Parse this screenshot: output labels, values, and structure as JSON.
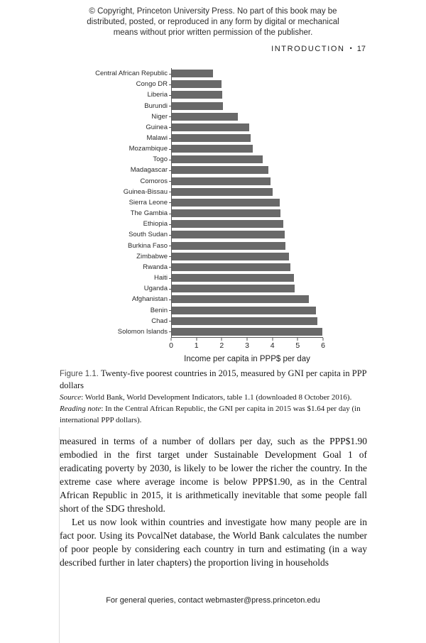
{
  "page": {
    "copyright_lines": [
      "© Copyright, Princeton University Press. No part of this book may be",
      "distributed, posted, or reproduced in any form by digital or mechanical",
      "means without prior written permission of the publisher."
    ],
    "running_head": {
      "section": "INTRODUCTION",
      "separator": "•",
      "page_number": "17"
    },
    "footer": "For general queries, contact webmaster@press.princeton.edu"
  },
  "chart_data": {
    "type": "bar",
    "orientation": "horizontal",
    "title": "",
    "xlabel": "Income per capita in PPP$ per day",
    "ylabel": "",
    "xlim": [
      0,
      6
    ],
    "x_ticks": [
      0,
      1,
      2,
      3,
      4,
      5,
      6
    ],
    "grid": false,
    "legend": false,
    "bar_color": "#696969",
    "categories": [
      "Central African Republic",
      "Congo DR",
      "Liberia",
      "Burundi",
      "Niger",
      "Guinea",
      "Malawi",
      "Mozambique",
      "Togo",
      "Madagascar",
      "Comoros",
      "Guinea-Bissau",
      "Sierra Leone",
      "The Gambia",
      "Ethiopia",
      "South Sudan",
      "Burkina Faso",
      "Zimbabwe",
      "Rwanda",
      "Haiti",
      "Uganda",
      "Afghanistan",
      "Benin",
      "Chad",
      "Solomon Islands"
    ],
    "values": [
      1.64,
      1.97,
      1.98,
      2.01,
      2.6,
      3.05,
      3.11,
      3.2,
      3.59,
      3.81,
      3.91,
      3.97,
      4.26,
      4.3,
      4.41,
      4.45,
      4.48,
      4.63,
      4.69,
      4.81,
      4.85,
      5.42,
      5.7,
      5.74,
      5.95
    ]
  },
  "caption": {
    "figure_label": "Figure 1.1.",
    "title": "Twenty-five poorest countries in 2015, measured by GNI per capita in PPP dollars",
    "source_label": "Source",
    "source_text": ": World Bank, World Development Indicators, table 1.1 (downloaded 8 October 2016).",
    "note_label": "Reading note",
    "note_text": ": In the Central African Republic, the GNI per capita in 2015 was $1.64 per day (in international PPP dollars)."
  },
  "body": {
    "paragraph_1": "measured in terms of a number of dollars per day, such as the PPP$1.90 embodied in the first target under Sustainable Development Goal 1 of eradicating poverty by 2030, is likely to be lower the richer the country. In the extreme case where average income is below PPP$1.90, as in the Central African Republic in 2015, it is arithmetically inevitable that some people fall short of the SDG threshold.",
    "paragraph_2": "Let us now look within countries and investigate how many people are in fact poor. Using its PovcalNet database, the World Bank calculates the number of poor people by considering each country in turn and estimating (in a way described further in later chapters) the proportion living in households"
  }
}
